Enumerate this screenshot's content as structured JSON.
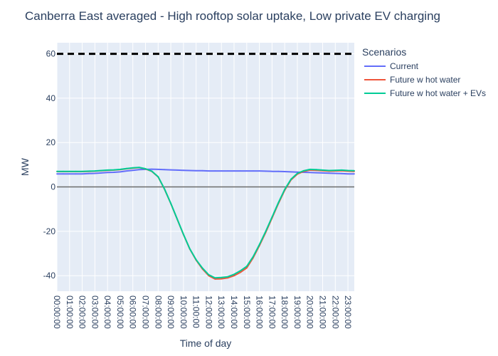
{
  "chart_data": {
    "type": "line",
    "title": "Canberra East averaged - High rooftop solar uptake, Low private EV charging",
    "xlabel": "Time of day",
    "ylabel": "MW",
    "ylim": [
      -47,
      65
    ],
    "yticks": [
      -40,
      -20,
      0,
      20,
      40,
      60
    ],
    "x_tick_labels": [
      "00:00:00",
      "01:00:00",
      "02:00:00",
      "03:00:00",
      "04:00:00",
      "05:00:00",
      "06:00:00",
      "07:00:00",
      "08:00:00",
      "09:00:00",
      "10:00:00",
      "11:00:00",
      "12:00:00",
      "13:00:00",
      "14:00:00",
      "15:00:00",
      "16:00:00",
      "17:00:00",
      "18:00:00",
      "19:00:00",
      "20:00:00",
      "21:00:00",
      "22:00:00",
      "23:00:00"
    ],
    "x_hours": [
      0,
      0.5,
      1,
      1.5,
      2,
      2.5,
      3,
      3.5,
      4,
      4.5,
      5,
      5.5,
      6,
      6.5,
      7,
      7.5,
      8,
      8.5,
      9,
      9.5,
      10,
      10.5,
      11,
      11.5,
      12,
      12.5,
      13,
      13.5,
      14,
      14.5,
      15,
      15.5,
      16,
      16.5,
      17,
      17.5,
      18,
      18.5,
      19,
      19.5,
      20,
      20.5,
      21,
      21.5,
      22,
      22.5,
      23,
      23.5
    ],
    "legend": {
      "title": "Scenarios",
      "position": "right"
    },
    "reference_lines": [
      {
        "y": 60,
        "style": "dashed",
        "color": "#000000"
      },
      {
        "y": 0,
        "style": "solid",
        "color": "#6b6b6b"
      }
    ],
    "series": [
      {
        "name": "Current",
        "color": "#636efa",
        "values": [
          5.9,
          5.9,
          5.9,
          5.9,
          5.9,
          6.0,
          6.1,
          6.3,
          6.5,
          6.6,
          6.8,
          7.2,
          7.5,
          7.8,
          7.9,
          8.0,
          7.9,
          7.8,
          7.7,
          7.6,
          7.5,
          7.4,
          7.3,
          7.3,
          7.2,
          7.2,
          7.2,
          7.2,
          7.2,
          7.2,
          7.2,
          7.2,
          7.2,
          7.1,
          7.0,
          7.0,
          6.9,
          6.8,
          6.7,
          6.6,
          6.5,
          6.4,
          6.3,
          6.2,
          6.1,
          6.0,
          5.9,
          5.9
        ]
      },
      {
        "name": "Future w hot water",
        "color": "#ef553b",
        "values": [
          6.9,
          6.9,
          6.9,
          6.9,
          6.9,
          7.0,
          7.1,
          7.3,
          7.5,
          7.6,
          7.8,
          8.2,
          8.5,
          8.7,
          8.1,
          7.0,
          4.5,
          -1.0,
          -7.5,
          -14.5,
          -21.5,
          -28.0,
          -33.0,
          -37.0,
          -40.0,
          -41.5,
          -41.4,
          -41.0,
          -40.0,
          -38.5,
          -36.5,
          -32.0,
          -26.5,
          -20.5,
          -14.0,
          -7.5,
          -1.5,
          3.2,
          5.8,
          7.0,
          7.6,
          7.5,
          7.3,
          7.1,
          7.2,
          7.3,
          7.1,
          7.0
        ]
      },
      {
        "name": "Future w hot water + EVs",
        "color": "#00cc96",
        "values": [
          7.0,
          7.0,
          7.0,
          7.0,
          7.0,
          7.1,
          7.2,
          7.4,
          7.6,
          7.7,
          7.9,
          8.3,
          8.6,
          8.8,
          8.2,
          7.1,
          4.6,
          -0.9,
          -7.4,
          -14.4,
          -21.4,
          -27.9,
          -32.8,
          -36.6,
          -39.6,
          -41.0,
          -40.8,
          -40.5,
          -39.4,
          -37.8,
          -35.8,
          -31.5,
          -26.0,
          -20.0,
          -13.6,
          -7.1,
          -1.1,
          3.5,
          6.1,
          7.3,
          7.9,
          7.8,
          7.6,
          7.4,
          7.5,
          7.6,
          7.4,
          7.3
        ]
      }
    ]
  }
}
